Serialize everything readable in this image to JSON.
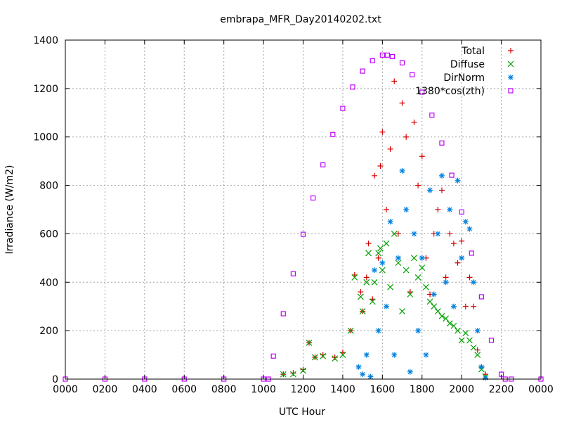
{
  "chart_data": {
    "type": "scatter",
    "title": "embrapa_MFR_Day20140202.txt",
    "xlabel": "UTC Hour",
    "ylabel": "Irradiance (W/m2)",
    "xlim": [
      0,
      24
    ],
    "ylim": [
      0,
      1400
    ],
    "grid": true,
    "legend_position": "top-right",
    "x_tick_labels": [
      "0000",
      "0200",
      "0400",
      "0600",
      "0800",
      "1000",
      "1200",
      "1400",
      "1600",
      "1800",
      "2000",
      "2200",
      "0000"
    ],
    "y_ticks": [
      0,
      200,
      400,
      600,
      800,
      1000,
      1200,
      1400
    ],
    "series": [
      {
        "name": "Total",
        "marker": "+",
        "color": "#d40000",
        "x": [
          11.0,
          11.5,
          12.0,
          12.3,
          12.6,
          13.0,
          13.6,
          14.0,
          14.4,
          14.6,
          14.9,
          15.0,
          15.2,
          15.3,
          15.5,
          15.6,
          15.8,
          15.9,
          16.0,
          16.2,
          16.4,
          16.6,
          16.8,
          17.0,
          17.2,
          17.4,
          17.6,
          17.8,
          18.0,
          18.2,
          18.4,
          18.6,
          18.8,
          19.0,
          19.2,
          19.4,
          19.6,
          19.8,
          20.0,
          20.2,
          20.4,
          20.6,
          20.8,
          21.0,
          21.2
        ],
        "y": [
          20,
          25,
          40,
          150,
          90,
          100,
          90,
          110,
          200,
          430,
          360,
          280,
          420,
          560,
          330,
          840,
          500,
          880,
          1020,
          700,
          950,
          1230,
          600,
          1140,
          1000,
          360,
          1060,
          800,
          920,
          500,
          350,
          600,
          700,
          780,
          420,
          600,
          560,
          480,
          570,
          300,
          420,
          300,
          120,
          50,
          20
        ]
      },
      {
        "name": "Diffuse",
        "marker": "x",
        "color": "#00a000",
        "x": [
          11.0,
          11.5,
          12.0,
          12.3,
          12.6,
          13.0,
          13.6,
          14.0,
          14.4,
          14.6,
          14.9,
          15.0,
          15.2,
          15.3,
          15.5,
          15.6,
          15.8,
          15.9,
          16.0,
          16.2,
          16.4,
          16.6,
          16.8,
          17.0,
          17.2,
          17.4,
          17.6,
          17.8,
          18.0,
          18.2,
          18.4,
          18.6,
          18.8,
          19.0,
          19.2,
          19.4,
          19.6,
          19.8,
          20.0,
          20.2,
          20.4,
          20.6,
          20.8,
          21.0,
          21.2
        ],
        "y": [
          20,
          20,
          35,
          150,
          90,
          95,
          85,
          100,
          200,
          420,
          340,
          280,
          400,
          520,
          320,
          400,
          520,
          540,
          450,
          560,
          380,
          600,
          480,
          280,
          450,
          350,
          500,
          420,
          460,
          380,
          320,
          300,
          280,
          260,
          250,
          230,
          220,
          200,
          160,
          190,
          160,
          130,
          100,
          40,
          10
        ]
      },
      {
        "name": "DirNorm",
        "marker": "*",
        "color": "#0080e0",
        "x": [
          14.8,
          15.0,
          15.2,
          15.4,
          15.6,
          15.8,
          16.0,
          16.2,
          16.4,
          16.6,
          16.8,
          17.0,
          17.2,
          17.4,
          17.6,
          17.8,
          18.0,
          18.2,
          18.4,
          18.6,
          18.8,
          19.0,
          19.2,
          19.4,
          19.6,
          19.8,
          20.0,
          20.2,
          20.4,
          20.6,
          20.8,
          21.0,
          21.2
        ],
        "y": [
          50,
          20,
          100,
          10,
          450,
          200,
          480,
          300,
          650,
          100,
          500,
          860,
          700,
          30,
          600,
          200,
          500,
          100,
          780,
          350,
          600,
          840,
          400,
          700,
          300,
          820,
          500,
          650,
          620,
          400,
          200,
          50,
          5
        ]
      },
      {
        "name": "1380*cos(zth)",
        "marker": "square",
        "color": "#c000ff",
        "x": [
          0,
          2,
          4,
          6,
          8,
          10,
          10.25,
          10.5,
          11,
          11.5,
          12,
          12.5,
          13,
          13.5,
          14,
          14.5,
          15,
          15.5,
          16,
          16.25,
          16.5,
          17,
          17.5,
          18,
          18.5,
          19,
          19.5,
          20,
          20.5,
          21,
          21.5,
          22,
          22.2,
          22.5,
          24
        ],
        "y": [
          0,
          0,
          0,
          0,
          0,
          0,
          0,
          95,
          270,
          435,
          598,
          748,
          885,
          1010,
          1118,
          1206,
          1272,
          1315,
          1338,
          1338,
          1332,
          1306,
          1257,
          1185,
          1090,
          975,
          842,
          690,
          520,
          340,
          160,
          20,
          0,
          0,
          0
        ]
      }
    ]
  }
}
